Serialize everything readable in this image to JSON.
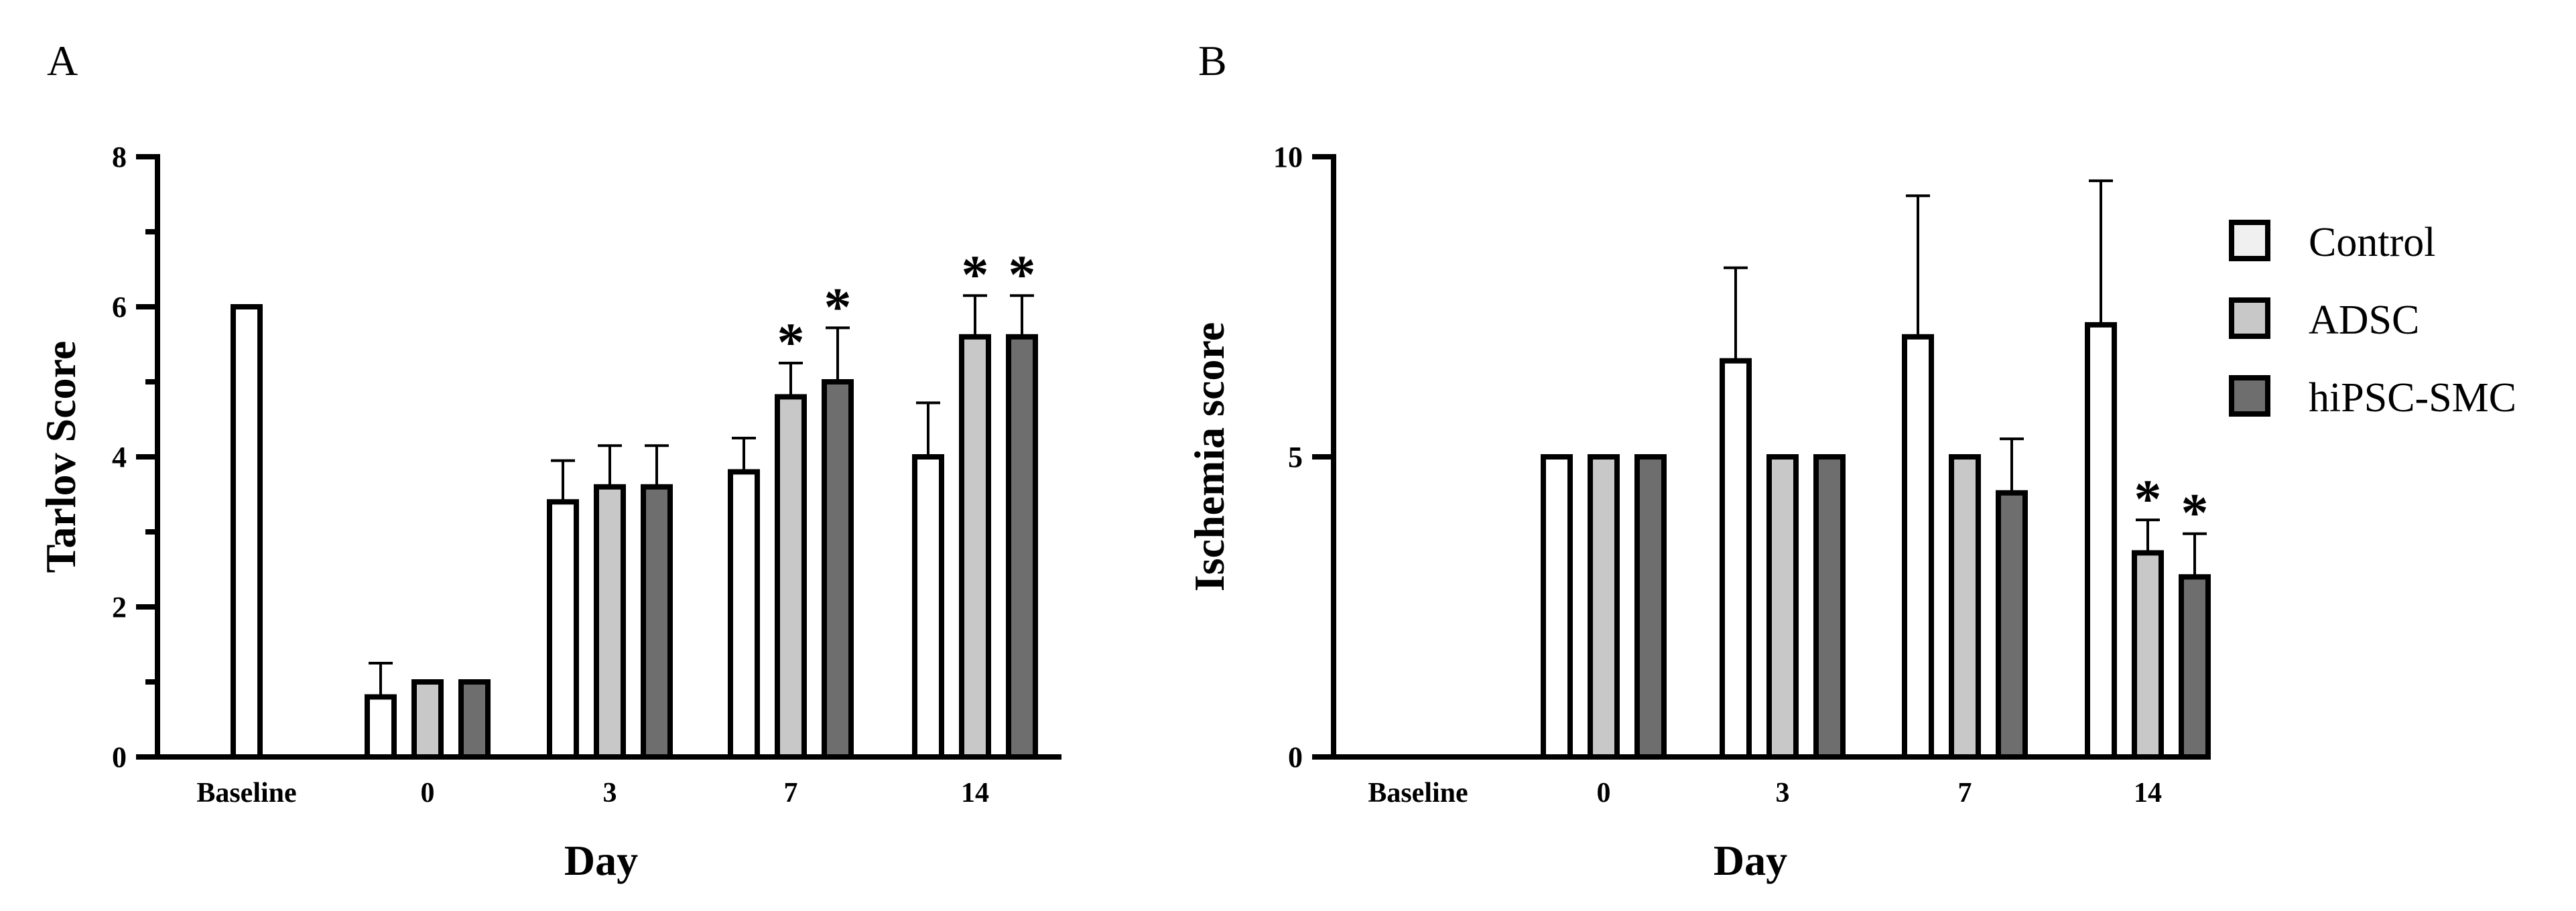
{
  "chart_data": [
    {
      "panel": "A",
      "type": "bar",
      "ylabel": "Tarlov Score",
      "xlabel": "Day",
      "ylim": [
        0,
        8
      ],
      "yticks": [
        "0",
        "2",
        "4",
        "6",
        "8"
      ],
      "categories": [
        "Baseline",
        "0",
        "3",
        "7",
        "14"
      ],
      "series": [
        {
          "name": "Control",
          "color": "#ffffff",
          "values": [
            6,
            0.8,
            3.4,
            3.8,
            4.0
          ],
          "errors": [
            null,
            0.45,
            0.55,
            0.45,
            0.72
          ],
          "significant": [
            false,
            false,
            false,
            false,
            false
          ]
        },
        {
          "name": "ADSC",
          "color": "#c8c8c8",
          "values": [
            null,
            1.0,
            3.6,
            4.8,
            5.6
          ],
          "errors": [
            null,
            0,
            0.55,
            0.45,
            0.55
          ],
          "significant": [
            false,
            false,
            false,
            true,
            true
          ]
        },
        {
          "name": "hiPSC-SMC",
          "color": "#6e6e6e",
          "values": [
            null,
            1.0,
            3.6,
            5.0,
            5.6
          ],
          "errors": [
            null,
            0,
            0.55,
            0.72,
            0.55
          ],
          "significant": [
            false,
            false,
            false,
            true,
            true
          ]
        }
      ]
    },
    {
      "panel": "B",
      "type": "bar",
      "ylabel": "Ischemia score",
      "xlabel": "Day",
      "ylim": [
        0,
        10
      ],
      "yticks": [
        "0",
        "5",
        "10"
      ],
      "categories": [
        "Baseline",
        "0",
        "3",
        "7",
        "14"
      ],
      "series": [
        {
          "name": "Control",
          "color": "#ffffff",
          "values": [
            null,
            5,
            6.6,
            7.0,
            7.2
          ],
          "errors": [
            null,
            0,
            1.55,
            2.35,
            2.4
          ],
          "significant": [
            false,
            false,
            false,
            false,
            false
          ]
        },
        {
          "name": "ADSC",
          "color": "#c8c8c8",
          "values": [
            null,
            5,
            5,
            5,
            3.4
          ],
          "errors": [
            null,
            0,
            0,
            0,
            0.55
          ],
          "significant": [
            false,
            false,
            false,
            false,
            true
          ]
        },
        {
          "name": "hiPSC-SMC",
          "color": "#6e6e6e",
          "values": [
            null,
            5,
            5,
            4.4,
            3.0
          ],
          "errors": [
            null,
            0,
            0,
            0.9,
            0.72
          ],
          "significant": [
            false,
            false,
            false,
            false,
            true
          ]
        }
      ]
    }
  ],
  "legend": {
    "items": [
      {
        "label": "Control",
        "color": "#f0f0f0"
      },
      {
        "label": "ADSC",
        "color": "#c8c8c8"
      },
      {
        "label": "hiPSC-SMC",
        "color": "#6e6e6e"
      }
    ]
  },
  "significance_marker": "*"
}
